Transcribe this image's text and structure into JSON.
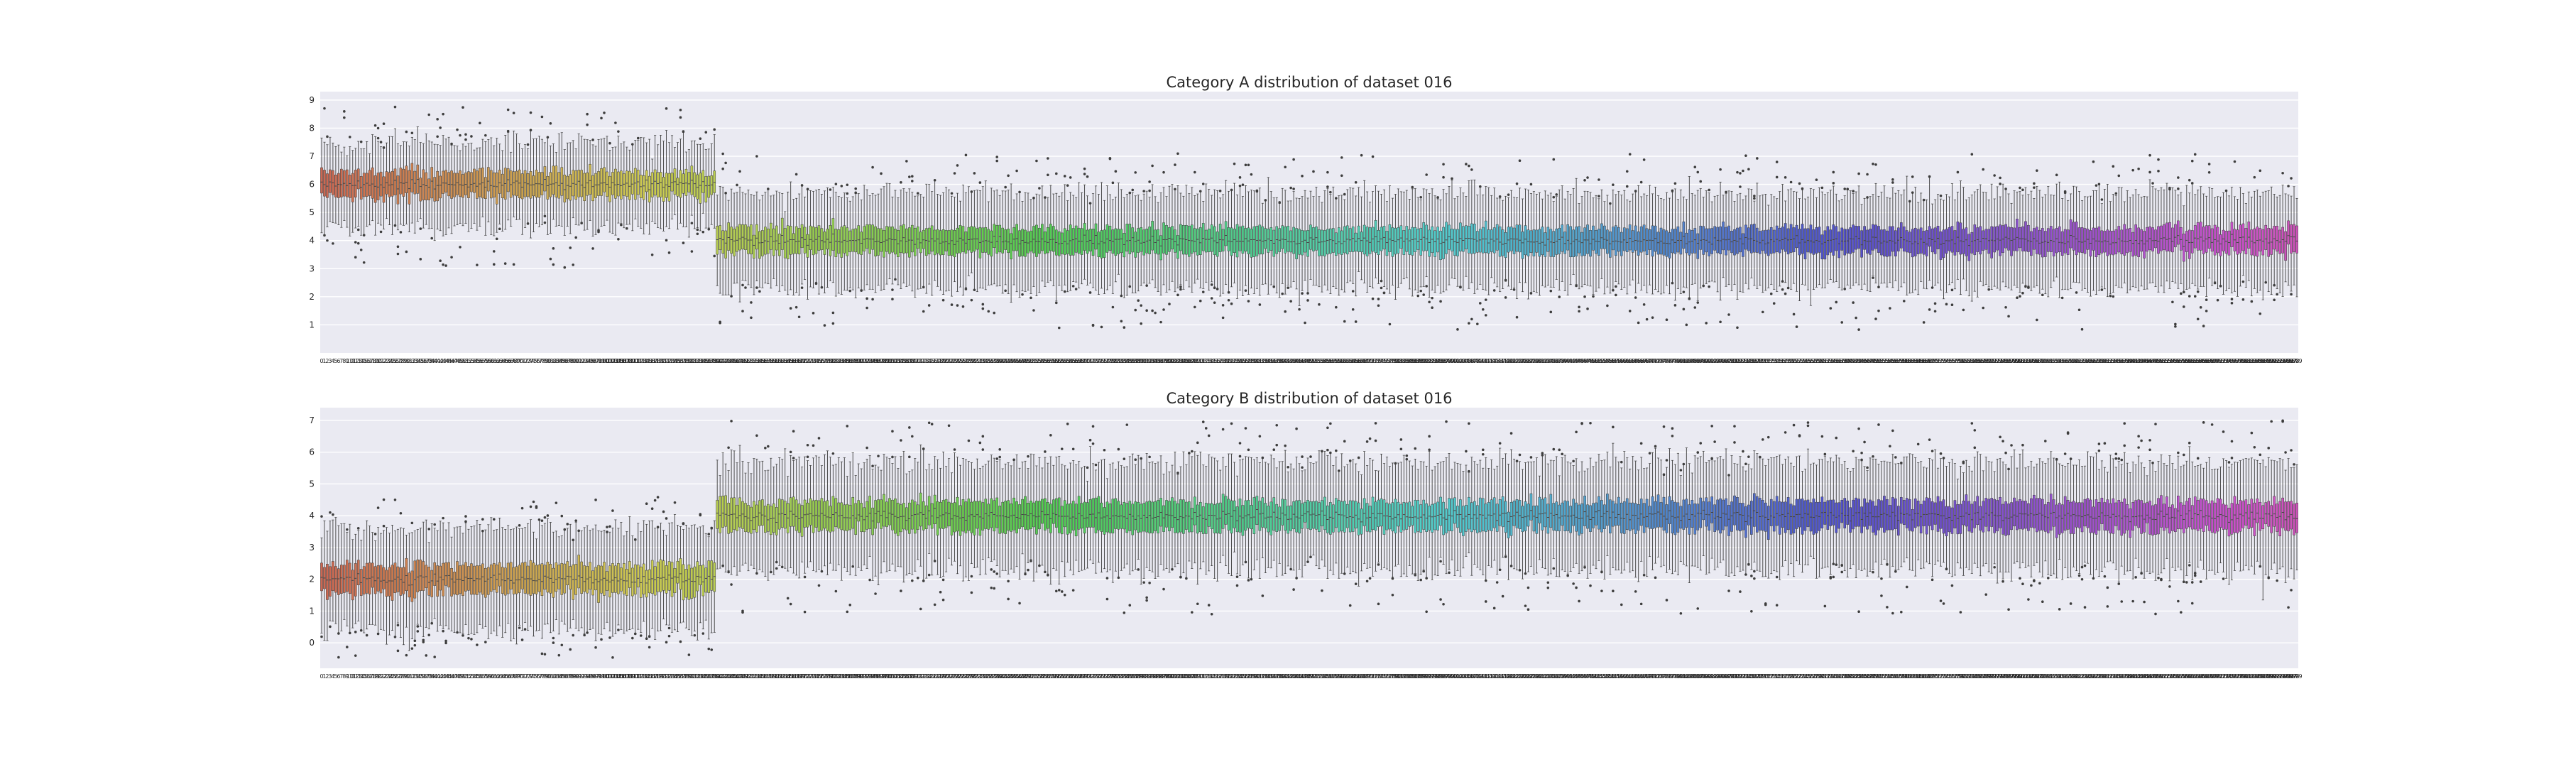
{
  "chart_data": [
    {
      "type": "box",
      "title": "Category A distribution of dataset 016",
      "xlabel": "",
      "ylabel": "",
      "ylim": [
        0,
        9.3
      ],
      "yticks": [
        1,
        2,
        3,
        4,
        5,
        6,
        7,
        8,
        9
      ],
      "grid": true,
      "n_categories": 700,
      "x_first": 0,
      "x_last": 699,
      "segments": [
        {
          "from": 0,
          "to": 139,
          "median": 6.0,
          "q1": 5.55,
          "q3": 6.45,
          "whisker_low": 4.5,
          "whisker_high": 7.5,
          "outlier_range": [
            3.0,
            8.8
          ]
        },
        {
          "from": 140,
          "to": 699,
          "median": 4.0,
          "q1": 3.55,
          "q3": 4.45,
          "whisker_low": 2.3,
          "whisker_high": 5.7,
          "outlier_range": [
            0.8,
            7.1
          ]
        }
      ],
      "palette": "husl"
    },
    {
      "type": "box",
      "title": "Category B distribution of dataset 016",
      "xlabel": "",
      "ylabel": "",
      "ylim": [
        -0.8,
        7.4
      ],
      "yticks": [
        0,
        1,
        2,
        3,
        4,
        5,
        6,
        7
      ],
      "grid": true,
      "n_categories": 700,
      "x_first": 0,
      "x_last": 699,
      "segments": [
        {
          "from": 0,
          "to": 139,
          "median": 2.0,
          "q1": 1.55,
          "q3": 2.45,
          "whisker_low": 0.4,
          "whisker_high": 3.6,
          "outlier_range": [
            -0.5,
            4.7
          ]
        },
        {
          "from": 140,
          "to": 699,
          "median": 4.0,
          "q1": 3.55,
          "q3": 4.45,
          "whisker_low": 2.3,
          "whisker_high": 5.7,
          "outlier_range": [
            0.9,
            7.0
          ]
        }
      ],
      "palette": "husl"
    }
  ]
}
